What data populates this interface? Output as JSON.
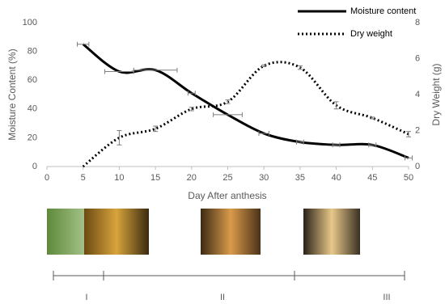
{
  "chart_data": {
    "type": "line",
    "x_label": "Day After anthesis",
    "y_label": "Moisture Content (%)",
    "y2_label": "Dry Weight (g)",
    "x": [
      5,
      10,
      15,
      20,
      25,
      30,
      35,
      40,
      45,
      50
    ],
    "series": [
      {
        "name": "Moisture content",
        "color": "#000000",
        "dash": "solid",
        "values": [
          85,
          66,
          67,
          51,
          36,
          23,
          17,
          15,
          15,
          6
        ],
        "xerr": [
          0.8,
          2,
          3,
          0.5,
          2,
          0.7,
          0.5,
          0.5,
          0.5,
          0.5
        ]
      },
      {
        "name": "Dry weight",
        "color": "#000000",
        "dash": "dotted",
        "axis": "y2",
        "values": [
          0,
          1.6,
          2.1,
          3.2,
          3.6,
          5.6,
          5.5,
          3.4,
          2.7,
          1.8
        ],
        "yerr": [
          null,
          0.4,
          0.15,
          0.1,
          0.1,
          0.05,
          0.1,
          0.2,
          0.05,
          0.15
        ]
      }
    ],
    "xlim": [
      0,
      50
    ],
    "xticks": [
      0,
      5,
      10,
      15,
      20,
      25,
      30,
      35,
      40,
      45,
      50
    ],
    "ylim": [
      0,
      100
    ],
    "yticks": [
      0,
      20,
      40,
      60,
      80,
      100
    ],
    "y2lim": [
      0,
      8
    ],
    "y2ticks": [
      0,
      2,
      4,
      6,
      8
    ],
    "legend": "top-right",
    "grid": false
  },
  "stages": [
    "I",
    "II",
    "III"
  ]
}
